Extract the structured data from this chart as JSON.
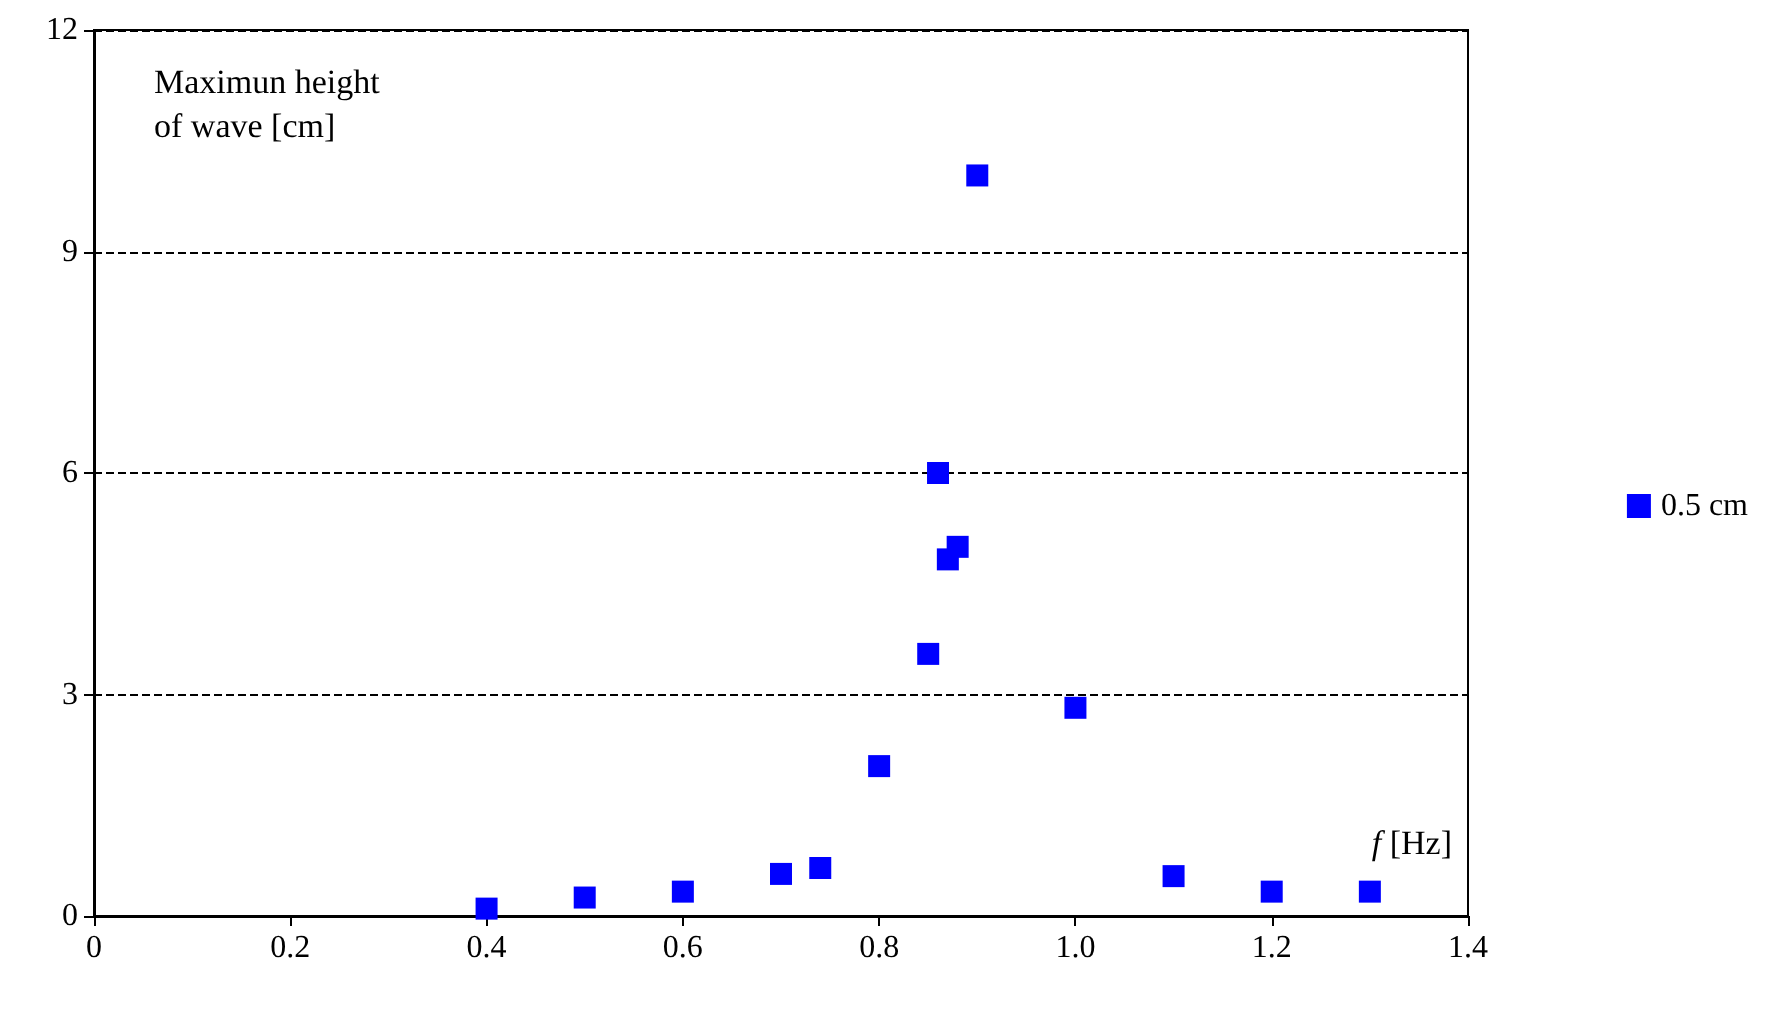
{
  "chart_data": {
    "type": "scatter",
    "ylabel": "Maximun height of wave [cm]",
    "xlabel": "f [Hz]",
    "x": [
      0.4,
      0.5,
      0.6,
      0.7,
      0.74,
      0.8,
      0.85,
      0.86,
      0.87,
      0.88,
      0.9,
      1.0,
      1.1,
      1.2,
      1.3
    ],
    "series": [
      {
        "name": "0.5 cm",
        "color": "#0000ff",
        "values": [
          0.1,
          0.25,
          0.33,
          0.57,
          0.65,
          2.03,
          3.55,
          6.0,
          4.83,
          5.0,
          10.03,
          2.82,
          0.54,
          0.33,
          0.33
        ]
      }
    ],
    "xlim": [
      0,
      1.4
    ],
    "xticks": [
      0,
      0.2,
      0.4,
      0.6,
      0.8,
      {
        "value": 1,
        "label": "1.0"
      },
      1.2,
      1.4
    ],
    "ylim": [
      0,
      12
    ],
    "yticks": [
      0,
      3,
      6,
      9,
      12
    ],
    "grid": "y",
    "legend": "right",
    "marker": "square"
  }
}
